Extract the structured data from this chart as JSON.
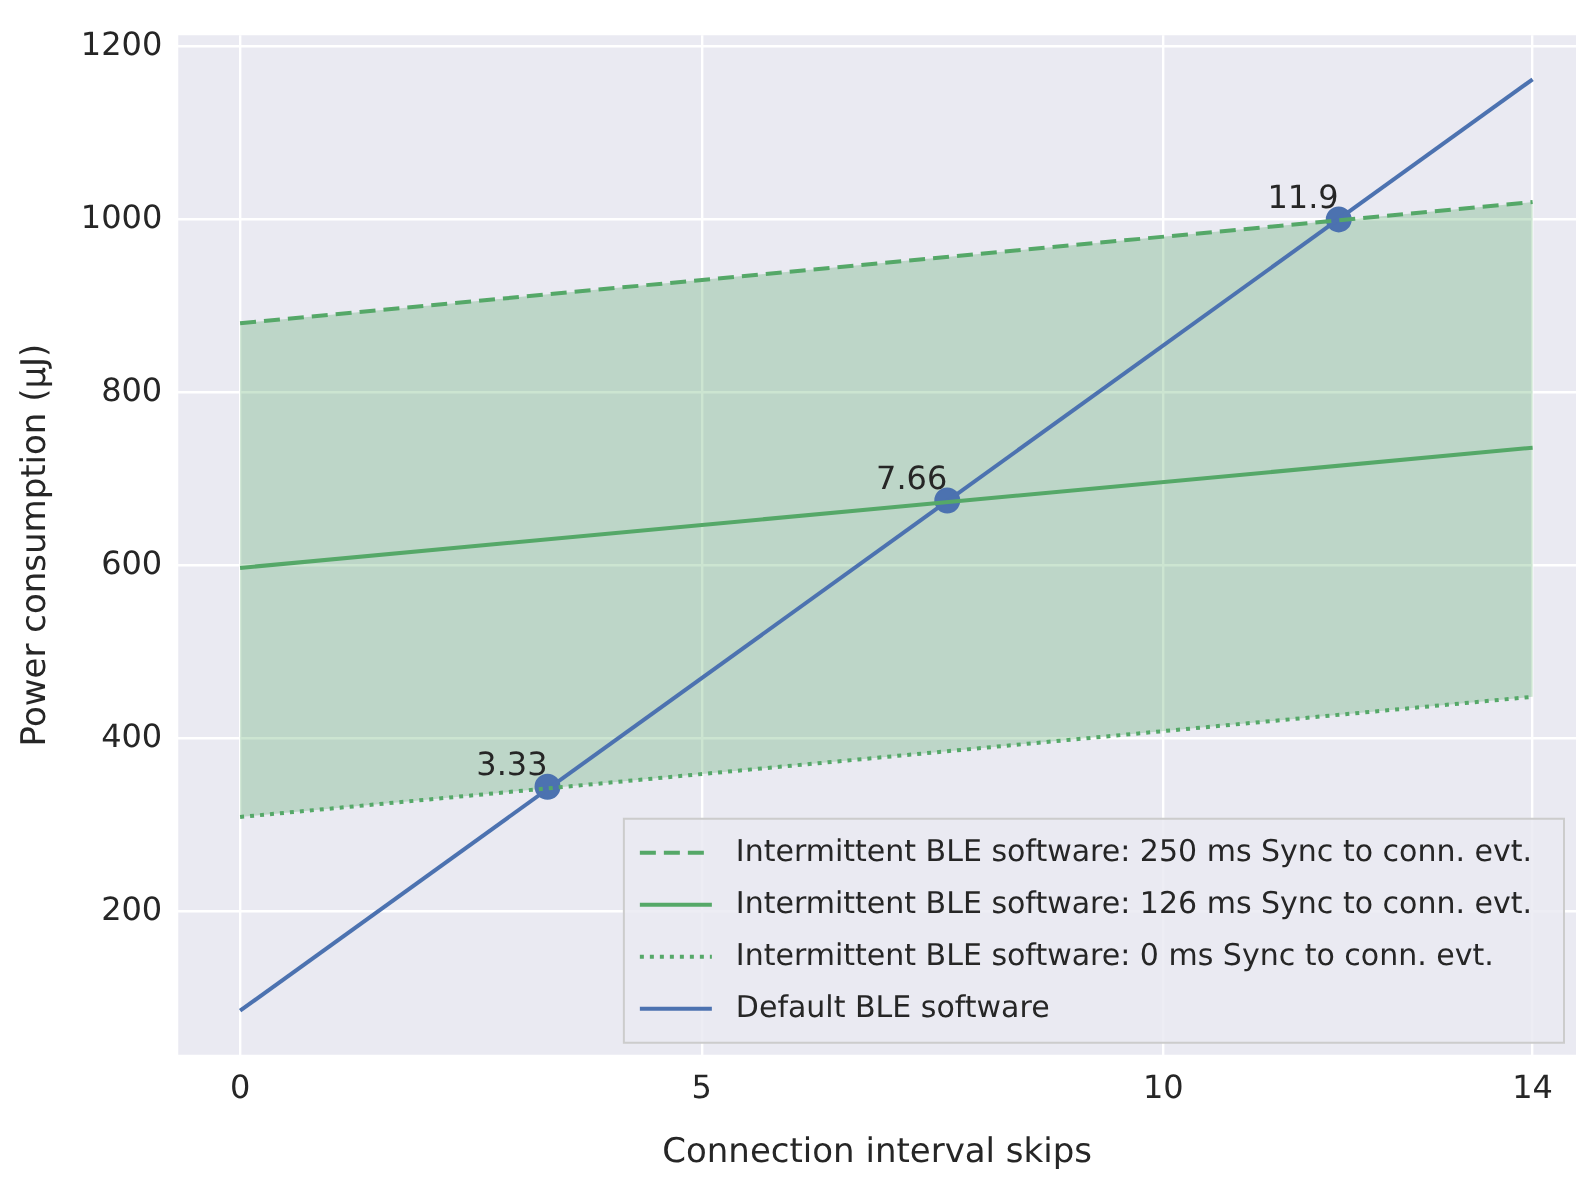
{
  "chart_data": {
    "type": "line",
    "xlabel": "Connection interval skips",
    "ylabel": "Power consumption (µJ)",
    "xlim": [
      -0.67,
      14.47
    ],
    "xticks": [
      0,
      5,
      10,
      14
    ],
    "ylim": [
      34,
      1213
    ],
    "yticks": [
      200,
      400,
      600,
      800,
      1000,
      1200
    ],
    "grid": true,
    "legend": "bottom right",
    "marker": "none",
    "series": [
      {
        "name": "Intermittent BLE software: 250 ms Sync to conn. evt.",
        "color": "#55a868",
        "line_style": "dashed",
        "x": [
          0,
          14
        ],
        "values": [
          880,
          1020
        ]
      },
      {
        "name": "Intermittent BLE software: 126 ms Sync to conn. evt.",
        "color": "#55a868",
        "line_style": "solid",
        "x": [
          0,
          14
        ],
        "values": [
          597,
          736
        ],
        "lower": [
          309,
          448
        ],
        "upper": [
          880,
          1020
        ]
      },
      {
        "name": "Intermittent BLE software: 0 ms Sync to conn. evt.",
        "color": "#55a868",
        "line_style": "dotted",
        "x": [
          0,
          14
        ],
        "values": [
          309,
          448
        ]
      },
      {
        "name": "Default BLE software",
        "color": "#4c72b0",
        "line_style": "solid",
        "x": [
          0,
          14
        ],
        "values": [
          85,
          1162
        ]
      },
      {
        "type": "scatter",
        "color": "#4c72b0",
        "marker": "circle",
        "x": [
          3.33,
          7.66,
          11.9
        ],
        "values": [
          344,
          675,
          1000
        ]
      }
    ],
    "annotations": [
      {
        "text": "3.33",
        "x": 3.33,
        "y": 344
      },
      {
        "text": "7.66",
        "x": 7.66,
        "y": 675
      },
      {
        "text": "11.9",
        "x": 11.9,
        "y": 1000
      }
    ]
  }
}
